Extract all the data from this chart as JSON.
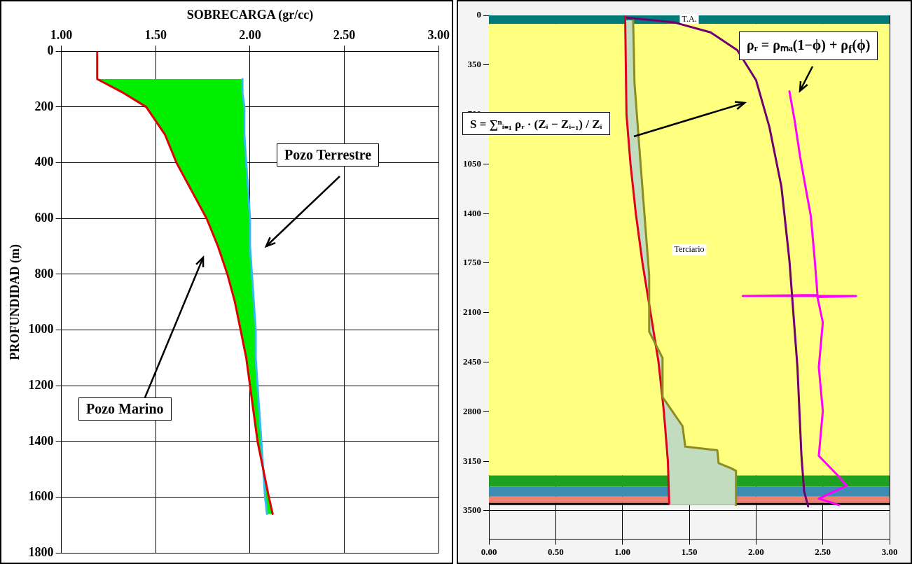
{
  "chart_data": [
    {
      "type": "line",
      "orientation": "horizontal",
      "xlabel": "SOBRECARGA (gr/cc)",
      "ylabel": "PROFUNDIDAD (m)",
      "xlim": [
        1,
        3
      ],
      "xticks": [
        {
          "value": 1,
          "label": "1.00"
        },
        {
          "value": 1.5,
          "label": "1.50"
        },
        {
          "value": 2,
          "label": "2.00"
        },
        {
          "value": 2.5,
          "label": "2.50"
        },
        {
          "value": 3,
          "label": "3.00"
        }
      ],
      "ylim": [
        1800,
        0
      ],
      "yticks": [
        0,
        200,
        400,
        600,
        800,
        1000,
        1200,
        1400,
        1600,
        1800
      ],
      "grid": true,
      "series": [
        {
          "color": "#e00000",
          "values": [
            1.19,
            1.19,
            1.33,
            1.45,
            1.55,
            1.61,
            1.69,
            1.77,
            1.83,
            1.88,
            1.92,
            1.95,
            1.98,
            2.0,
            2.02,
            2.04,
            2.07,
            2.1,
            2.12
          ],
          "x": [
            0,
            100,
            150,
            200,
            300,
            400,
            500,
            600,
            700,
            800,
            900,
            1000,
            1100,
            1200,
            1300,
            1400,
            1500,
            1600,
            1660
          ]
        },
        {
          "color": "#33bbee",
          "values": [
            1.96,
            1.96,
            1.97,
            1.97,
            1.98,
            1.99,
            2.0,
            2.0,
            2.01,
            2.02,
            2.03,
            2.03,
            2.04,
            2.05,
            2.06,
            2.07,
            2.08,
            2.09
          ],
          "x": [
            100,
            150,
            200,
            300,
            400,
            500,
            600,
            700,
            800,
            900,
            1000,
            1100,
            1200,
            1300,
            1400,
            1500,
            1600,
            1660
          ],
          "lower": [
            1.19,
            1.33,
            1.45,
            1.55,
            1.61,
            1.69,
            1.77,
            1.83,
            1.88,
            1.92,
            1.95,
            1.98,
            2.0,
            2.02,
            2.04,
            2.07,
            2.1,
            2.12
          ],
          "upper": [
            1.96,
            1.96,
            1.97,
            1.97,
            1.98,
            1.99,
            2.0,
            2.0,
            2.01,
            2.02,
            2.03,
            2.03,
            2.04,
            2.05,
            2.06,
            2.07,
            2.08,
            2.09
          ]
        }
      ],
      "annotations": [
        "Pozo Terrestre",
        "Pozo Marino"
      ]
    },
    {
      "type": "line",
      "orientation": "horizontal",
      "xlim": [
        0,
        3
      ],
      "xticks": [
        {
          "value": 0,
          "label": "0.00"
        },
        {
          "value": 0.5,
          "label": "0.50"
        },
        {
          "value": 1,
          "label": "1.00"
        },
        {
          "value": 1.5,
          "label": "1.50"
        },
        {
          "value": 2,
          "label": "2.00"
        },
        {
          "value": 2.5,
          "label": "2.50"
        },
        {
          "value": 3,
          "label": "3.00"
        }
      ],
      "ylim": [
        3700,
        0
      ],
      "yticks": [
        0,
        350,
        700,
        1050,
        1400,
        1750,
        2100,
        2450,
        2800,
        3150,
        3500
      ],
      "grid": true,
      "bands": [
        {
          "axis": "y",
          "from": 0,
          "to": 60,
          "label": "T.A.",
          "color": "#007b78"
        },
        {
          "axis": "y",
          "from": 60,
          "to": 3250,
          "label": "Terciario",
          "color": "#ffff80"
        },
        {
          "axis": "y",
          "from": 3250,
          "to": 3330,
          "color": "#20a020"
        },
        {
          "axis": "y",
          "from": 3330,
          "to": 3400,
          "color": "#3c8cb4"
        },
        {
          "axis": "y",
          "from": 3400,
          "to": 3445,
          "color": "#f08070"
        },
        {
          "axis": "y",
          "from": 3445,
          "to": 3460,
          "color": "#000000"
        }
      ],
      "series": [
        {
          "color": "#8c8c20",
          "values": [
            1.08,
            1.09,
            1.14,
            1.2,
            1.2,
            1.3,
            1.3,
            1.45,
            1.47,
            1.71,
            1.72,
            1.81,
            1.85,
            1.85
          ],
          "x": [
            35,
            477,
            1104,
            1837,
            2234,
            2420,
            2696,
            2902,
            3047,
            3072,
            3163,
            3198,
            3218,
            3459
          ],
          "lower": [
            1.02,
            1.02,
            1.06,
            1.16,
            1.23,
            1.26,
            1.3,
            1.32,
            1.33,
            1.33,
            1.34,
            1.34,
            1.34,
            1.35
          ],
          "upper": [
            1.08,
            1.09,
            1.14,
            1.2,
            1.2,
            1.3,
            1.3,
            1.45,
            1.47,
            1.71,
            1.72,
            1.81,
            1.85,
            1.85
          ]
        },
        {
          "color": "#e00020",
          "values": [
            1.02,
            1.03,
            1.06,
            1.1,
            1.15,
            1.21,
            1.27,
            1.31,
            1.34,
            1.35
          ],
          "x": [
            0,
            700,
            1050,
            1400,
            1750,
            2100,
            2450,
            2800,
            3150,
            3450
          ]
        },
        {
          "color": "#700070",
          "values": [
            1.02,
            1.02,
            1.39,
            1.66,
            1.86,
            2.0,
            2.1,
            2.19,
            2.25,
            2.27,
            2.31,
            2.34,
            2.36,
            2.39
          ],
          "x": [
            0,
            15,
            50,
            120,
            246,
            457,
            788,
            1210,
            1732,
            1983,
            2485,
            3112,
            3363,
            3469
          ]
        },
        {
          "color": "#ff00ff",
          "values": [
            2.25,
            2.29,
            2.33,
            2.37,
            2.41,
            2.44,
            2.46,
            1.9,
            2.75,
            2.46,
            2.5,
            2.47,
            2.5,
            2.47,
            2.62,
            2.68,
            2.47,
            2.62
          ],
          "x": [
            537,
            748,
            999,
            1210,
            1416,
            1732,
            1975,
            1983,
            1983,
            1990,
            2169,
            2485,
            2796,
            3112,
            3258,
            3323,
            3414,
            3459
          ]
        }
      ],
      "annotations": [
        "S = ∑ⁿᵢ₌₁ ρᵣ · (Zᵢ − Zᵢ₋₁) / Zᵢ",
        "ρᵣ = ρₘₐ(1−ϕ) + ρ$_{f}$(ϕ)"
      ]
    }
  ]
}
